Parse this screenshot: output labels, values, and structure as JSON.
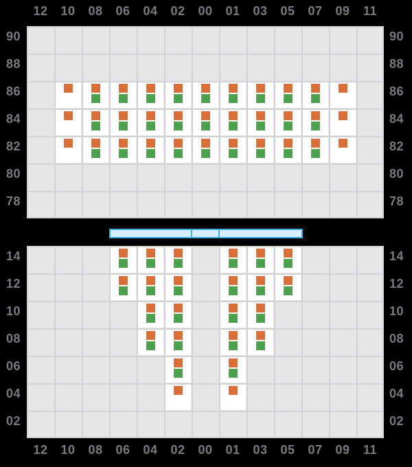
{
  "app": {
    "background": "#000000"
  },
  "chart_data": {
    "type": "heatmap",
    "x_categories": [
      "12",
      "10",
      "08",
      "06",
      "04",
      "02",
      "00",
      "01",
      "03",
      "05",
      "07",
      "09",
      "11"
    ],
    "x_axis_shown": [
      "top",
      "bottom"
    ],
    "y_axis_shown": [
      "left",
      "right"
    ],
    "grid": true,
    "panel_bg": "#e6e6e8",
    "grid_color": "#d2d2d6",
    "cell_color": "#ffffff",
    "label_color": "#7a7a82",
    "marker_colors": {
      "orange": "#dd6e38",
      "green": "#4fa24d"
    },
    "panels": [
      {
        "id": "upper",
        "y_categories": [
          "90",
          "88",
          "86",
          "84",
          "82",
          "80",
          "78"
        ],
        "rows": [
          {
            "y": "86",
            "orange_green": [
              "08",
              "06",
              "04",
              "02",
              "00",
              "01",
              "03",
              "05",
              "07"
            ],
            "orange_only": [
              "10",
              "09"
            ]
          },
          {
            "y": "84",
            "orange_green": [
              "08",
              "06",
              "04",
              "02",
              "00",
              "01",
              "03",
              "05",
              "07"
            ],
            "orange_only": [
              "10",
              "09"
            ]
          },
          {
            "y": "82",
            "orange_green": [
              "08",
              "06",
              "04",
              "02",
              "00",
              "01",
              "03",
              "05",
              "07"
            ],
            "orange_only": [
              "10",
              "09"
            ]
          }
        ]
      },
      {
        "id": "lower",
        "y_categories": [
          "14",
          "12",
          "10",
          "08",
          "06",
          "04",
          "02"
        ],
        "rows": [
          {
            "y": "14",
            "orange_green": [
              "06",
              "04",
              "02",
              "01",
              "03",
              "05"
            ],
            "orange_only": []
          },
          {
            "y": "12",
            "orange_green": [
              "06",
              "04",
              "02",
              "01",
              "03",
              "05"
            ],
            "orange_only": []
          },
          {
            "y": "10",
            "orange_green": [
              "04",
              "02",
              "01",
              "03"
            ],
            "orange_only": []
          },
          {
            "y": "08",
            "orange_green": [
              "04",
              "02",
              "01",
              "03"
            ],
            "orange_only": []
          },
          {
            "y": "06",
            "orange_green": [
              "02",
              "01"
            ],
            "orange_only": []
          },
          {
            "y": "04",
            "orange_green": [],
            "orange_only": [
              "02",
              "01"
            ]
          }
        ]
      }
    ],
    "range_bar": {
      "fill": "#d9eefb",
      "border": "#3aade3",
      "segments": [
        {
          "from_col": "06",
          "to_col": "02"
        },
        {
          "from_col": "00",
          "to_col": "00"
        },
        {
          "from_col": "01",
          "to_col": "05"
        }
      ]
    }
  }
}
